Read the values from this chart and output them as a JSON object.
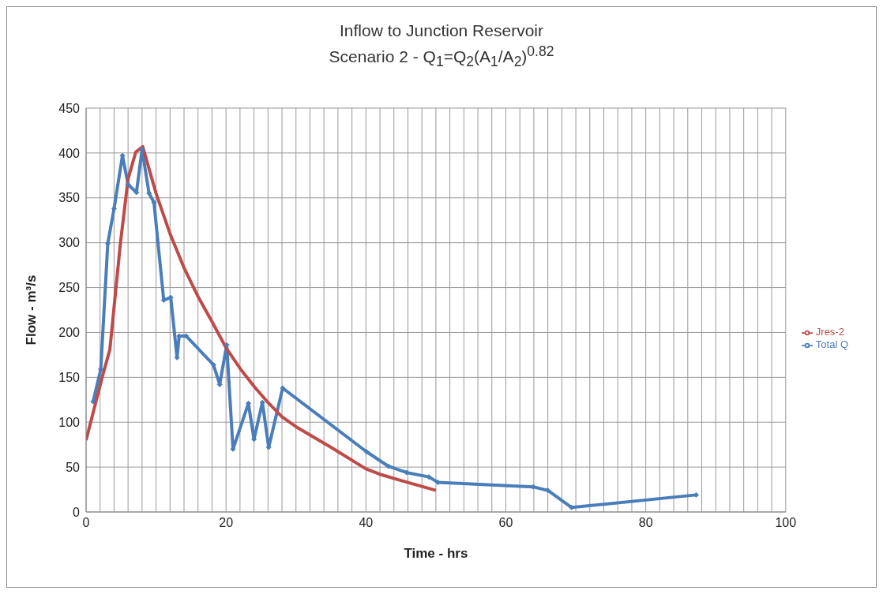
{
  "chart_data": {
    "type": "line",
    "title": "Inflow to Junction Reservoir",
    "subtitle": "Scenario 2 - Q$_{1}$=Q$_{2}$(A$_{1}$/A$_{2}$)$^{0.82}$",
    "xlabel": "Time - hrs",
    "ylabel": "Flow - m³/s",
    "xlim": [
      0,
      100
    ],
    "xticks": [
      0,
      {
        "value": 2,
        "label": null
      },
      {
        "value": 4,
        "label": null
      },
      {
        "value": 6,
        "label": null
      },
      {
        "value": 8,
        "label": null
      },
      {
        "value": 10,
        "label": null
      },
      {
        "value": 12,
        "label": null
      },
      {
        "value": 14,
        "label": null
      },
      {
        "value": 16,
        "label": null
      },
      {
        "value": 18,
        "label": null
      },
      20,
      {
        "value": 22,
        "label": null
      },
      {
        "value": 24,
        "label": null
      },
      {
        "value": 26,
        "label": null
      },
      {
        "value": 28,
        "label": null
      },
      {
        "value": 30,
        "label": null
      },
      {
        "value": 32,
        "label": null
      },
      {
        "value": 34,
        "label": null
      },
      {
        "value": 36,
        "label": null
      },
      {
        "value": 38,
        "label": null
      },
      40,
      {
        "value": 42,
        "label": null
      },
      {
        "value": 44,
        "label": null
      },
      {
        "value": 46,
        "label": null
      },
      {
        "value": 48,
        "label": null
      },
      {
        "value": 50,
        "label": null
      },
      {
        "value": 52,
        "label": null
      },
      {
        "value": 54,
        "label": null
      },
      {
        "value": 56,
        "label": null
      },
      {
        "value": 58,
        "label": null
      },
      60,
      {
        "value": 62,
        "label": null
      },
      {
        "value": 64,
        "label": null
      },
      {
        "value": 66,
        "label": null
      },
      {
        "value": 68,
        "label": null
      },
      {
        "value": 70,
        "label": null
      },
      {
        "value": 72,
        "label": null
      },
      {
        "value": 74,
        "label": null
      },
      {
        "value": 76,
        "label": null
      },
      {
        "value": 78,
        "label": null
      },
      80,
      {
        "value": 82,
        "label": null
      },
      {
        "value": 84,
        "label": null
      },
      {
        "value": 86,
        "label": null
      },
      {
        "value": 88,
        "label": null
      },
      {
        "value": 90,
        "label": null
      },
      {
        "value": 92,
        "label": null
      },
      {
        "value": 94,
        "label": null
      },
      {
        "value": 96,
        "label": null
      },
      {
        "value": 98,
        "label": null
      },
      100
    ],
    "ylim": [
      0,
      450
    ],
    "yticks": [
      0,
      50,
      100,
      150,
      200,
      250,
      300,
      350,
      400,
      450
    ],
    "grid": true,
    "legend": "right",
    "line_style": "solid",
    "series": [
      {
        "name": "Total Q",
        "color": "#4a7ebb",
        "marker": "diamond",
        "x": [
          1,
          2.1,
          3.1,
          4,
          5.2,
          6,
          7.2,
          8,
          9,
          9.7,
          11.1,
          12.1,
          13,
          13.3,
          14.3,
          18.2,
          19.1,
          20.1,
          21,
          23.2,
          24,
          25.2,
          26.1,
          28.1,
          40.1,
          43.2,
          45.8,
          49,
          50.3,
          63.9,
          66,
          69.4,
          87.2
        ],
        "values": [
          123,
          159,
          299,
          338,
          397,
          365,
          356,
          404,
          355,
          345,
          236,
          239,
          172,
          196,
          196,
          164,
          142,
          186,
          70,
          121,
          81,
          122,
          72,
          138,
          67,
          51,
          44,
          39,
          33,
          28,
          24,
          5,
          19
        ]
      },
      {
        "name": "Jres-2",
        "color": "#be4b48",
        "marker": "none",
        "x": [
          0,
          2.3,
          3.4,
          4.9,
          6,
          7.1,
          8.1,
          10,
          12,
          14,
          16,
          18,
          20,
          22,
          24,
          26,
          28,
          30,
          35,
          40,
          42,
          45,
          50
        ],
        "values": [
          80,
          150,
          181,
          299,
          371,
          401,
          407,
          355,
          310,
          272,
          240,
          212,
          183,
          160,
          140,
          122,
          106,
          95,
          72,
          48,
          42,
          35,
          24
        ]
      }
    ]
  }
}
